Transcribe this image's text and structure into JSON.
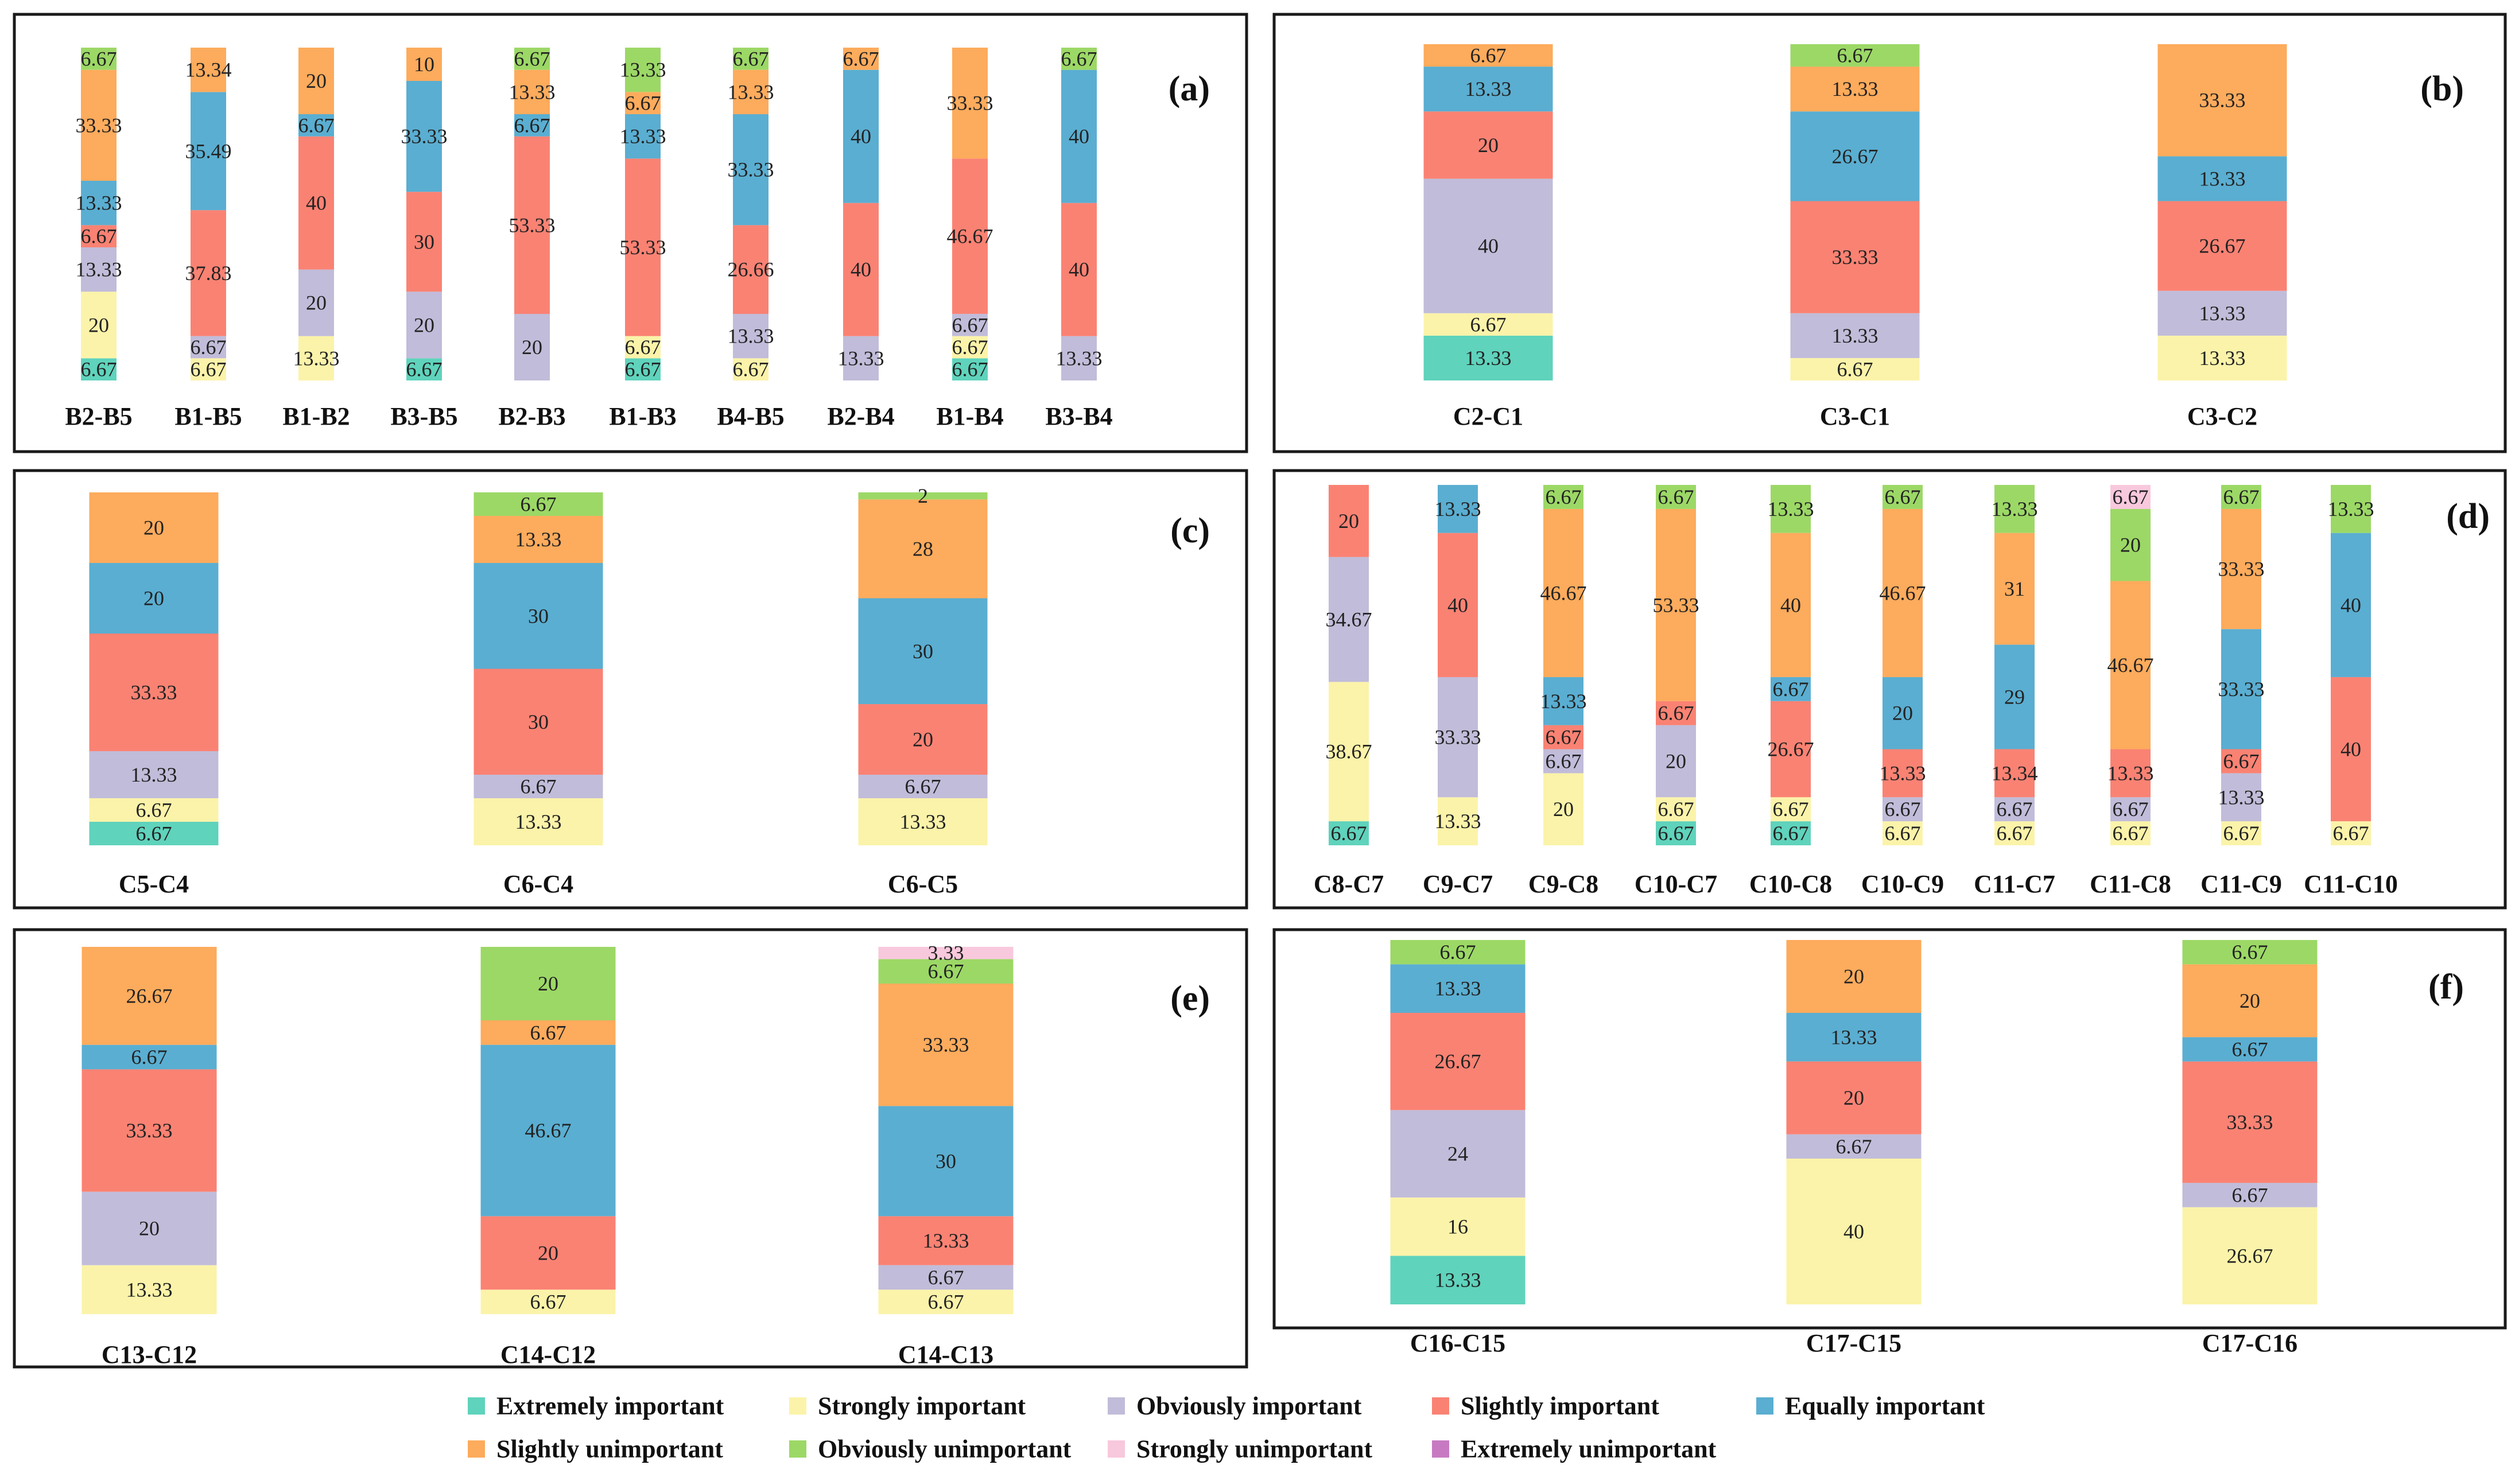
{
  "legend": {
    "items": [
      {
        "key": "extremely_important",
        "label": "Extremely important",
        "color": "#5fd3bc"
      },
      {
        "key": "strongly_important",
        "label": "Strongly important",
        "color": "#fbf3a9"
      },
      {
        "key": "obviously_important",
        "label": "Obviously important",
        "color": "#c1bcd9"
      },
      {
        "key": "slightly_important",
        "label": "Slightly important",
        "color": "#fa8273"
      },
      {
        "key": "equally_important",
        "label": "Equally important",
        "color": "#5aaed1"
      },
      {
        "key": "slightly_unimportant",
        "label": "Slightly unimportant",
        "color": "#fdab5c"
      },
      {
        "key": "obviously_unimportant",
        "label": "Obviously unimportant",
        "color": "#9cd866"
      },
      {
        "key": "strongly_unimportant",
        "label": "Strongly unimportant",
        "color": "#f8c8dc"
      },
      {
        "key": "extremely_unimportant",
        "label": "Extremely unimportant",
        "color": "#c77ac2"
      }
    ]
  },
  "chart_data": [
    {
      "type": "bar",
      "stacked": "100%",
      "panel": "(a)",
      "categories": [
        "B2-B5",
        "B1-B5",
        "B1-B2",
        "B3-B5",
        "B2-B3",
        "B1-B3",
        "B4-B5",
        "B2-B4",
        "B1-B4",
        "B3-B4"
      ],
      "series": [
        {
          "name": "Extremely important",
          "values": [
            6.67,
            0,
            0,
            6.67,
            0,
            6.67,
            0,
            0,
            6.67,
            0
          ]
        },
        {
          "name": "Strongly important",
          "values": [
            20,
            6.67,
            13.33,
            0,
            0,
            6.67,
            6.67,
            0,
            6.67,
            0
          ]
        },
        {
          "name": "Obviously important",
          "values": [
            13.33,
            6.67,
            20,
            20,
            20,
            0,
            13.33,
            13.33,
            6.67,
            13.33
          ]
        },
        {
          "name": "Slightly important",
          "values": [
            6.67,
            37.83,
            40,
            30,
            53.33,
            53.33,
            26.66,
            40,
            46.67,
            40
          ]
        },
        {
          "name": "Equally important",
          "values": [
            13.33,
            35.49,
            6.67,
            33.33,
            6.67,
            13.33,
            33.33,
            40,
            0,
            40
          ]
        },
        {
          "name": "Slightly unimportant",
          "values": [
            33.33,
            13.34,
            20,
            10,
            13.33,
            6.67,
            13.33,
            6.67,
            33.33,
            0
          ]
        },
        {
          "name": "Obviously unimportant",
          "values": [
            6.67,
            0,
            0,
            0,
            6.67,
            13.33,
            6.67,
            0,
            0,
            6.67
          ]
        },
        {
          "name": "Strongly unimportant",
          "values": [
            0,
            0,
            0,
            0,
            0,
            0,
            0,
            0,
            0,
            0
          ]
        },
        {
          "name": "Extremely unimportant",
          "values": [
            0,
            0,
            0,
            0,
            0,
            0,
            0,
            0,
            0,
            0
          ]
        }
      ]
    },
    {
      "type": "bar",
      "stacked": "100%",
      "panel": "(b)",
      "categories": [
        "C2-C1",
        "C3-C1",
        "C3-C2"
      ],
      "series": [
        {
          "name": "Extremely important",
          "values": [
            13.33,
            0,
            0
          ]
        },
        {
          "name": "Strongly important",
          "values": [
            6.67,
            6.67,
            13.33
          ]
        },
        {
          "name": "Obviously important",
          "values": [
            40,
            13.33,
            13.33
          ]
        },
        {
          "name": "Slightly important",
          "values": [
            20,
            33.33,
            26.67
          ]
        },
        {
          "name": "Equally important",
          "values": [
            13.33,
            26.67,
            13.33
          ]
        },
        {
          "name": "Slightly unimportant",
          "values": [
            6.67,
            13.33,
            33.33
          ]
        },
        {
          "name": "Obviously unimportant",
          "values": [
            0,
            6.67,
            0
          ]
        },
        {
          "name": "Strongly unimportant",
          "values": [
            0,
            0,
            0
          ]
        },
        {
          "name": "Extremely unimportant",
          "values": [
            0,
            0,
            0
          ]
        }
      ]
    },
    {
      "type": "bar",
      "stacked": "100%",
      "panel": "(c)",
      "categories": [
        "C5-C4",
        "C6-C4",
        "C6-C5"
      ],
      "series": [
        {
          "name": "Extremely important",
          "values": [
            6.67,
            0,
            0
          ]
        },
        {
          "name": "Strongly important",
          "values": [
            6.67,
            13.33,
            13.33
          ]
        },
        {
          "name": "Obviously important",
          "values": [
            13.33,
            6.67,
            6.67
          ]
        },
        {
          "name": "Slightly important",
          "values": [
            33.33,
            30,
            20
          ]
        },
        {
          "name": "Equally important",
          "values": [
            20,
            30,
            30
          ]
        },
        {
          "name": "Slightly unimportant",
          "values": [
            20,
            13.33,
            28
          ]
        },
        {
          "name": "Obviously unimportant",
          "values": [
            0,
            6.67,
            2
          ]
        },
        {
          "name": "Strongly unimportant",
          "values": [
            0,
            0,
            0
          ]
        },
        {
          "name": "Extremely unimportant",
          "values": [
            0,
            0,
            0
          ]
        }
      ]
    },
    {
      "type": "bar",
      "stacked": "100%",
      "panel": "(d)",
      "categories": [
        "C8-C7",
        "C9-C7",
        "C9-C8",
        "C10-C7",
        "C10-C8",
        "C10-C9",
        "C11-C7",
        "C11-C8",
        "C11-C9",
        "C11-C10"
      ],
      "series": [
        {
          "name": "Extremely important",
          "values": [
            6.67,
            0,
            0,
            6.67,
            6.67,
            0,
            0,
            0,
            0,
            0
          ]
        },
        {
          "name": "Strongly important",
          "values": [
            38.67,
            13.33,
            20,
            6.67,
            6.67,
            6.67,
            6.67,
            6.67,
            6.67,
            6.67
          ]
        },
        {
          "name": "Obviously important",
          "values": [
            34.67,
            33.33,
            6.67,
            20,
            0,
            6.67,
            6.67,
            6.67,
            13.33,
            0
          ]
        },
        {
          "name": "Slightly important",
          "values": [
            20,
            40,
            6.67,
            6.67,
            26.67,
            13.33,
            13.34,
            13.33,
            6.67,
            40
          ]
        },
        {
          "name": "Equally important",
          "values": [
            0,
            13.33,
            13.33,
            0,
            6.67,
            20,
            29,
            0,
            33.33,
            40
          ]
        },
        {
          "name": "Slightly unimportant",
          "values": [
            0,
            0,
            46.67,
            53.33,
            40,
            46.67,
            31,
            46.67,
            33.33,
            0
          ]
        },
        {
          "name": "Obviously unimportant",
          "values": [
            0,
            0,
            6.67,
            6.67,
            13.33,
            6.67,
            13.33,
            20,
            6.67,
            13.33
          ]
        },
        {
          "name": "Strongly unimportant",
          "values": [
            0,
            0,
            0,
            0,
            0,
            0,
            0,
            6.67,
            0,
            0
          ]
        },
        {
          "name": "Extremely unimportant",
          "values": [
            0,
            0,
            0,
            0,
            0,
            0,
            0,
            0,
            0,
            0
          ]
        }
      ]
    },
    {
      "type": "bar",
      "stacked": "100%",
      "panel": "(e)",
      "categories": [
        "C13-C12",
        "C14-C12",
        "C14-C13"
      ],
      "series": [
        {
          "name": "Extremely important",
          "values": [
            0,
            0,
            0
          ]
        },
        {
          "name": "Strongly important",
          "values": [
            13.33,
            6.67,
            6.67
          ]
        },
        {
          "name": "Obviously important",
          "values": [
            20,
            0,
            6.67
          ]
        },
        {
          "name": "Slightly important",
          "values": [
            33.33,
            20,
            13.33
          ]
        },
        {
          "name": "Equally important",
          "values": [
            6.67,
            46.67,
            30
          ]
        },
        {
          "name": "Slightly unimportant",
          "values": [
            26.67,
            6.67,
            33.33
          ]
        },
        {
          "name": "Obviously unimportant",
          "values": [
            0,
            20,
            6.67
          ]
        },
        {
          "name": "Strongly unimportant",
          "values": [
            0,
            0,
            3.33
          ]
        },
        {
          "name": "Extremely unimportant",
          "values": [
            0,
            0,
            0
          ]
        }
      ]
    },
    {
      "type": "bar",
      "stacked": "100%",
      "panel": "(f)",
      "categories": [
        "C16-C15",
        "C17-C15",
        "C17-C16"
      ],
      "series": [
        {
          "name": "Extremely important",
          "values": [
            13.33,
            0,
            0
          ]
        },
        {
          "name": "Strongly important",
          "values": [
            16,
            40,
            26.67
          ]
        },
        {
          "name": "Obviously important",
          "values": [
            24,
            6.67,
            6.67
          ]
        },
        {
          "name": "Slightly important",
          "values": [
            26.67,
            20,
            33.33
          ]
        },
        {
          "name": "Equally important",
          "values": [
            13.33,
            13.33,
            6.67
          ]
        },
        {
          "name": "Slightly unimportant",
          "values": [
            0,
            20,
            20
          ]
        },
        {
          "name": "Obviously unimportant",
          "values": [
            6.67,
            0,
            6.67
          ]
        },
        {
          "name": "Strongly unimportant",
          "values": [
            0,
            0,
            0
          ]
        },
        {
          "name": "Extremely unimportant",
          "values": [
            0,
            0,
            0
          ]
        }
      ]
    }
  ]
}
